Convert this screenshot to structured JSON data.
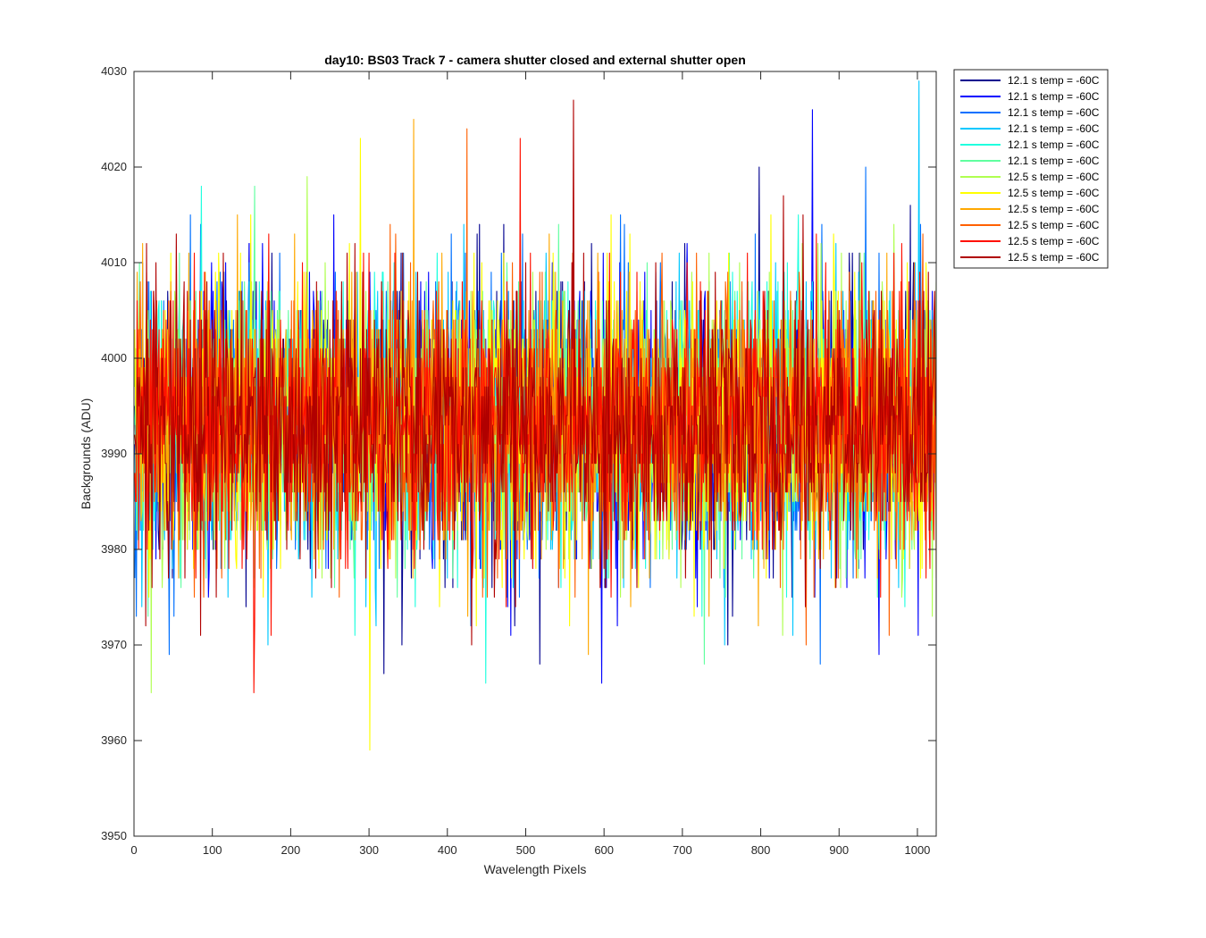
{
  "chart_data": {
    "type": "line",
    "title": "day10: BS03  Track 7 - camera shutter closed and external shutter open",
    "xlabel": "Wavelength Pixels",
    "ylabel": "Backgrounds (ADU)",
    "xlim": [
      0,
      1024
    ],
    "ylim": [
      3950,
      4030
    ],
    "xticks": [
      0,
      100,
      200,
      300,
      400,
      500,
      600,
      700,
      800,
      900,
      1000
    ],
    "yticks": [
      3950,
      3960,
      3970,
      3980,
      3990,
      4000,
      4010,
      4020,
      4030
    ],
    "grid": false,
    "legend_position": "outside-top-right",
    "series": [
      {
        "name": "12.1 s temp = -60C",
        "color": "#00008f",
        "mean": 3993.5,
        "spread": 7,
        "min": 3967,
        "max": 4020
      },
      {
        "name": "12.1 s temp = -60C",
        "color": "#0000ff",
        "mean": 3993.5,
        "spread": 7,
        "min": 3966,
        "max": 4026
      },
      {
        "name": "12.1 s temp = -60C",
        "color": "#0070ff",
        "mean": 3993.5,
        "spread": 7,
        "min": 3968,
        "max": 4020
      },
      {
        "name": "12.1 s temp = -60C",
        "color": "#00c8ff",
        "mean": 3993.5,
        "spread": 7,
        "min": 3970,
        "max": 4029
      },
      {
        "name": "12.1 s temp = -60C",
        "color": "#20ffdf",
        "mean": 3993.5,
        "spread": 7,
        "min": 3966,
        "max": 4018
      },
      {
        "name": "12.1 s temp = -60C",
        "color": "#60ff9f",
        "mean": 3993.5,
        "spread": 7,
        "min": 3968,
        "max": 4018
      },
      {
        "name": "12.5 s temp = -60C",
        "color": "#afff50",
        "mean": 3993.5,
        "spread": 7,
        "min": 3965,
        "max": 4019
      },
      {
        "name": "12.5 s temp = -60C",
        "color": "#ffff00",
        "mean": 3993.5,
        "spread": 7,
        "min": 3959,
        "max": 4023
      },
      {
        "name": "12.5 s temp = -60C",
        "color": "#ffa800",
        "mean": 3993.5,
        "spread": 7,
        "min": 3969,
        "max": 4025
      },
      {
        "name": "12.5 s temp = -60C",
        "color": "#ff6000",
        "mean": 3993.5,
        "spread": 7,
        "min": 3970,
        "max": 4024
      },
      {
        "name": "12.5 s temp = -60C",
        "color": "#ff1000",
        "mean": 3993.5,
        "spread": 7,
        "min": 3965,
        "max": 4023
      },
      {
        "name": "12.5 s temp = -60C",
        "color": "#b00000",
        "mean": 3993.5,
        "spread": 7,
        "min": 3970,
        "max": 4027
      }
    ]
  }
}
